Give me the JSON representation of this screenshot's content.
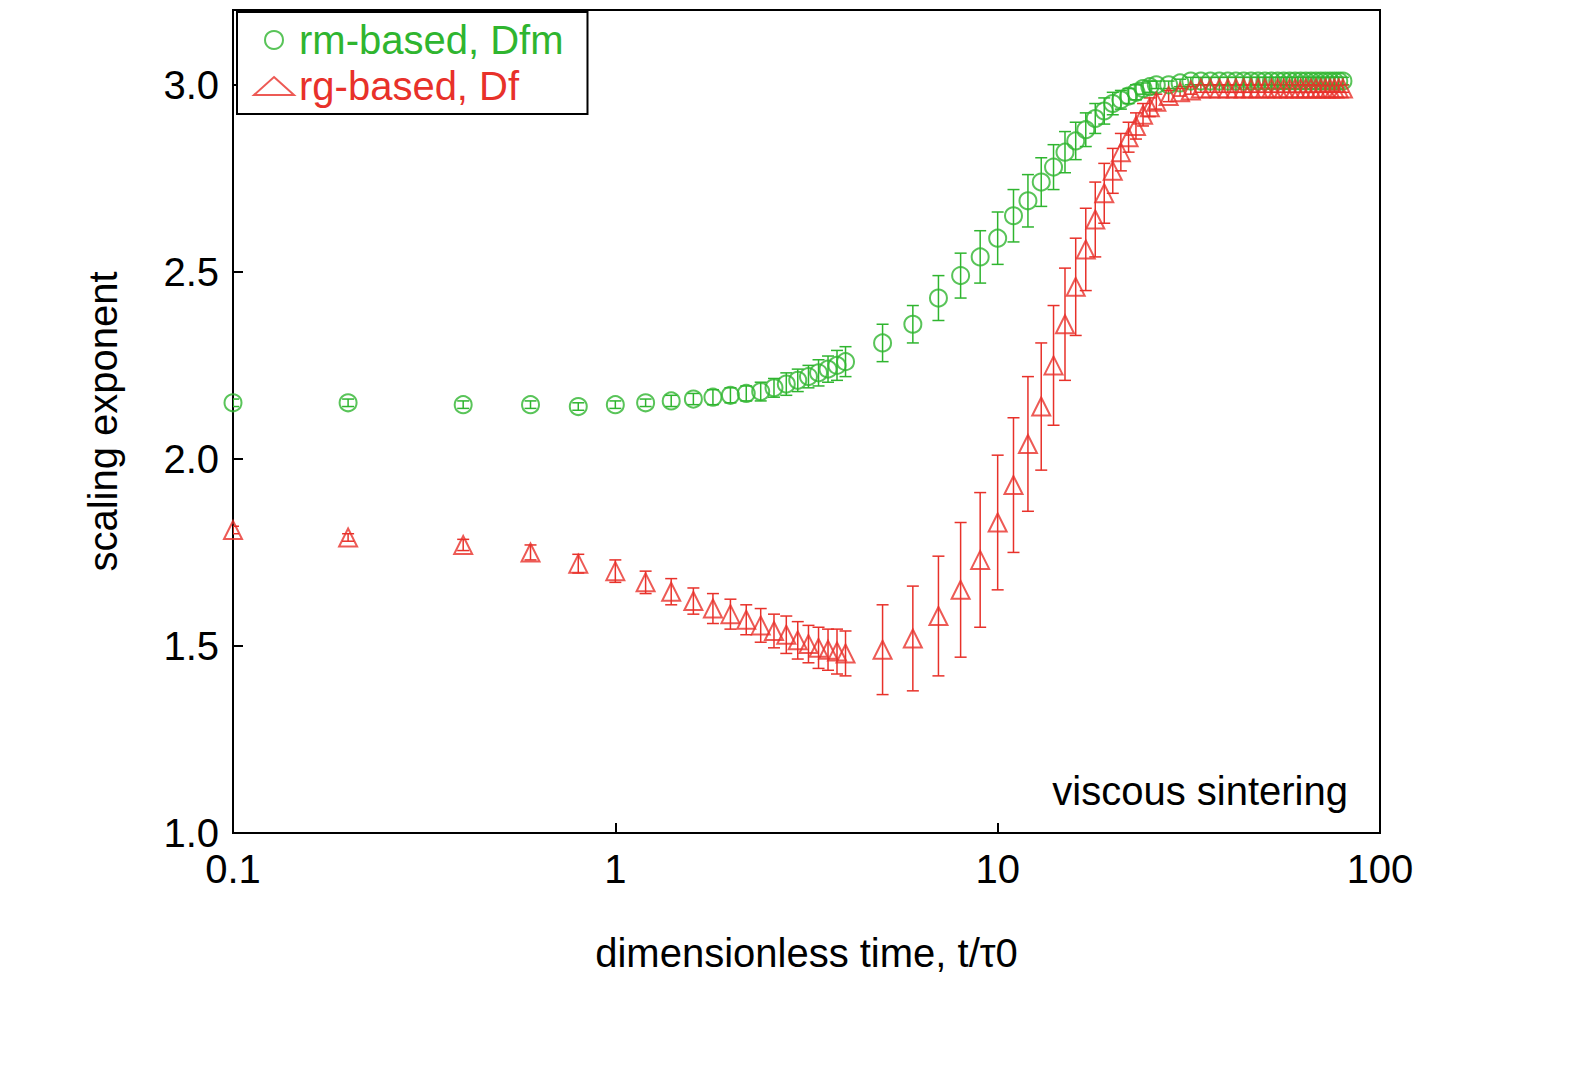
{
  "chart_data": {
    "type": "scatter",
    "xlabel": "dimensionless time, t/τ0",
    "ylabel": "scaling exponent",
    "annotations": [
      "viscous sintering"
    ],
    "log": "x",
    "legend": "upper left",
    "grid": false,
    "xlim": [
      0.1,
      100
    ],
    "xticks": [
      0.1,
      1,
      10,
      100
    ],
    "ylim": [
      1,
      3.2
    ],
    "yticks": [
      {
        "value": 1,
        "label": "1.0"
      },
      {
        "value": 1.5,
        "label": "1.5"
      },
      {
        "value": 2,
        "label": "2.0"
      },
      {
        "value": 2.5,
        "label": "2.5"
      },
      {
        "value": 3,
        "label": "3.0"
      }
    ],
    "x": [
      0.1,
      0.2,
      0.4,
      0.6,
      0.8,
      1.0,
      1.2,
      1.4,
      1.6,
      1.8,
      2.0,
      2.2,
      2.4,
      2.6,
      2.8,
      3.0,
      3.2,
      3.4,
      3.6,
      3.8,
      4.0,
      5,
      6,
      7,
      8,
      9,
      10,
      11,
      12,
      13,
      14,
      15,
      16,
      17,
      18,
      19,
      20,
      21,
      22,
      23,
      24,
      25,
      26,
      28,
      30,
      32,
      34,
      36,
      38,
      40,
      42,
      44,
      46,
      48,
      50,
      52,
      54,
      56,
      58,
      60,
      62,
      64,
      66,
      68,
      70,
      72,
      74,
      76,
      78,
      80
    ],
    "series": [
      {
        "name": "rm-based, Dfm",
        "color": "#2fb52f",
        "marker": "circle",
        "values": [
          2.15,
          2.15,
          2.145,
          2.145,
          2.14,
          2.145,
          2.15,
          2.155,
          2.16,
          2.165,
          2.17,
          2.175,
          2.18,
          2.19,
          2.2,
          2.21,
          2.22,
          2.23,
          2.24,
          2.25,
          2.26,
          2.31,
          2.36,
          2.43,
          2.49,
          2.54,
          2.59,
          2.65,
          2.69,
          2.74,
          2.78,
          2.82,
          2.85,
          2.88,
          2.91,
          2.93,
          2.95,
          2.96,
          2.97,
          2.98,
          2.99,
          2.995,
          3.0,
          3.0,
          3.005,
          3.01,
          3.01,
          3.01,
          3.01,
          3.01,
          3.01,
          3.01,
          3.01,
          3.01,
          3.01,
          3.01,
          3.01,
          3.01,
          3.01,
          3.01,
          3.01,
          3.01,
          3.01,
          3.01,
          3.01,
          3.01,
          3.01,
          3.01,
          3.01,
          3.01
        ],
        "errors": [
          0.01,
          0.01,
          0.01,
          0.01,
          0.01,
          0.01,
          0.01,
          0.015,
          0.015,
          0.02,
          0.02,
          0.02,
          0.025,
          0.025,
          0.03,
          0.03,
          0.03,
          0.035,
          0.035,
          0.04,
          0.04,
          0.05,
          0.05,
          0.06,
          0.06,
          0.07,
          0.07,
          0.07,
          0.07,
          0.065,
          0.06,
          0.055,
          0.05,
          0.045,
          0.04,
          0.035,
          0.03,
          0.025,
          0.02,
          0.02,
          0.015,
          0.015,
          0.01,
          0.01,
          0.01,
          0.01,
          0.01,
          0.01,
          0.01,
          0.01,
          0.01,
          0.01,
          0.01,
          0.01,
          0.01,
          0.01,
          0.01,
          0.01,
          0.01,
          0.01,
          0.01,
          0.01,
          0.01,
          0.01,
          0.01,
          0.01,
          0.01,
          0.01,
          0.01,
          0.01
        ]
      },
      {
        "name": "rg-based, Df",
        "color": "#e8312a",
        "marker": "triangle",
        "values": [
          1.81,
          1.79,
          1.77,
          1.75,
          1.72,
          1.7,
          1.67,
          1.645,
          1.62,
          1.6,
          1.585,
          1.57,
          1.555,
          1.54,
          1.53,
          1.515,
          1.505,
          1.495,
          1.49,
          1.485,
          1.48,
          1.49,
          1.52,
          1.58,
          1.65,
          1.73,
          1.83,
          1.93,
          2.04,
          2.14,
          2.25,
          2.36,
          2.46,
          2.56,
          2.64,
          2.71,
          2.77,
          2.82,
          2.86,
          2.89,
          2.92,
          2.94,
          2.955,
          2.97,
          2.98,
          2.985,
          2.99,
          2.99,
          2.99,
          2.99,
          2.99,
          2.99,
          2.99,
          2.99,
          2.99,
          2.99,
          2.99,
          2.99,
          2.99,
          2.99,
          2.99,
          2.99,
          2.99,
          2.99,
          2.99,
          2.99,
          2.99,
          2.99,
          2.99,
          2.99
        ],
        "errors": [
          0.01,
          0.01,
          0.015,
          0.02,
          0.025,
          0.03,
          0.03,
          0.035,
          0.035,
          0.04,
          0.04,
          0.04,
          0.045,
          0.045,
          0.05,
          0.05,
          0.05,
          0.055,
          0.055,
          0.06,
          0.06,
          0.12,
          0.14,
          0.16,
          0.18,
          0.18,
          0.18,
          0.18,
          0.18,
          0.17,
          0.16,
          0.15,
          0.13,
          0.11,
          0.1,
          0.08,
          0.06,
          0.05,
          0.04,
          0.035,
          0.03,
          0.025,
          0.02,
          0.015,
          0.01,
          0.01,
          0.01,
          0.01,
          0.01,
          0.01,
          0.01,
          0.01,
          0.01,
          0.01,
          0.01,
          0.01,
          0.01,
          0.01,
          0.01,
          0.01,
          0.01,
          0.01,
          0.01,
          0.01,
          0.01,
          0.01,
          0.01,
          0.01,
          0.01,
          0.01
        ]
      }
    ]
  }
}
